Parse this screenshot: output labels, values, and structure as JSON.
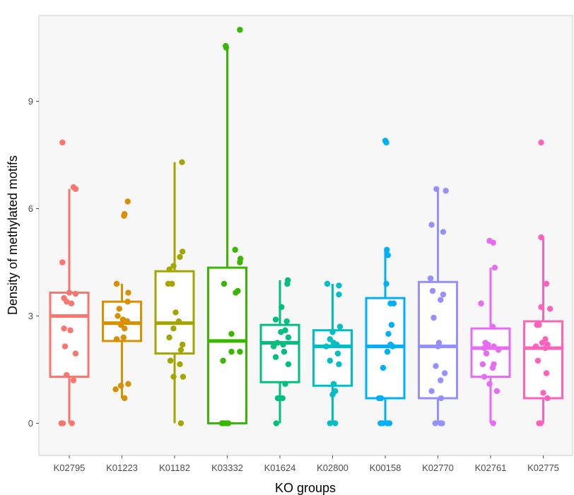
{
  "chart_data": {
    "type": "boxplot",
    "xlabel": "KO groups",
    "ylabel": "Density of methylated motifs",
    "ylim": [
      -0.9,
      11.4
    ],
    "yticks": [
      0,
      3,
      6,
      9
    ],
    "grid": false,
    "legend": "none",
    "background_color": "#f7f7f7",
    "categories": [
      "K02795",
      "K01223",
      "K01182",
      "K03332",
      "K01624",
      "K02800",
      "K00158",
      "K02770",
      "K02761",
      "K02775"
    ],
    "colors": [
      "#f8766d",
      "#d89000",
      "#a3a500",
      "#39b600",
      "#00bf7d",
      "#00bfc4",
      "#00b0f6",
      "#9590ff",
      "#e76bf3",
      "#ff62bc"
    ],
    "boxes": [
      {
        "whisker_low": 0,
        "q1": 1.3,
        "median": 3.0,
        "q3": 3.65,
        "whisker_high": 6.55
      },
      {
        "whisker_low": 0.7,
        "q1": 2.3,
        "median": 2.8,
        "q3": 3.4,
        "whisker_high": 3.9
      },
      {
        "whisker_low": 0,
        "q1": 1.95,
        "median": 2.8,
        "q3": 4.25,
        "whisker_high": 7.3
      },
      {
        "whisker_low": 0,
        "q1": 0,
        "median": 2.3,
        "q3": 4.35,
        "whisker_high": 10.5
      },
      {
        "whisker_low": 0,
        "q1": 1.15,
        "median": 2.25,
        "q3": 2.75,
        "whisker_high": 4.0
      },
      {
        "whisker_low": 0,
        "q1": 1.05,
        "median": 2.15,
        "q3": 2.6,
        "whisker_high": 3.9
      },
      {
        "whisker_low": 0,
        "q1": 0.7,
        "median": 2.15,
        "q3": 3.5,
        "whisker_high": 4.85
      },
      {
        "whisker_low": 0,
        "q1": 0.7,
        "median": 2.15,
        "q3": 3.95,
        "whisker_high": 6.55
      },
      {
        "whisker_low": 0,
        "q1": 1.3,
        "median": 2.1,
        "q3": 2.65,
        "whisker_high": 4.35
      },
      {
        "whisker_low": 0,
        "q1": 0.7,
        "median": 2.1,
        "q3": 2.85,
        "whisker_high": 5.2
      }
    ],
    "points": [
      [
        [
          -0.13,
          7.85
        ],
        [
          0.12,
          6.55
        ],
        [
          0.08,
          6.6
        ],
        [
          -0.13,
          4.5
        ],
        [
          0.0,
          3.65
        ],
        [
          0.12,
          3.62
        ],
        [
          -0.1,
          3.5
        ],
        [
          -0.05,
          3.4
        ],
        [
          0.04,
          3.35
        ],
        [
          -0.1,
          2.65
        ],
        [
          0.02,
          2.6
        ],
        [
          -0.08,
          2.15
        ],
        [
          0.12,
          1.95
        ],
        [
          -0.05,
          1.35
        ],
        [
          0.08,
          1.2
        ],
        [
          -0.15,
          0.0
        ],
        [
          -0.12,
          0.0
        ],
        [
          0.05,
          0.0
        ]
      ],
      [
        [
          0.11,
          6.2
        ],
        [
          0.05,
          5.85
        ],
        [
          0.04,
          5.8
        ],
        [
          -0.1,
          3.9
        ],
        [
          0.12,
          3.65
        ],
        [
          0.11,
          3.4
        ],
        [
          -0.05,
          3.2
        ],
        [
          -0.08,
          3.0
        ],
        [
          0.02,
          2.9
        ],
        [
          0.1,
          2.85
        ],
        [
          -0.02,
          2.75
        ],
        [
          0.05,
          2.65
        ],
        [
          0.03,
          2.4
        ],
        [
          -0.1,
          2.35
        ],
        [
          0.12,
          1.1
        ],
        [
          -0.02,
          1.05
        ],
        [
          -0.12,
          0.95
        ],
        [
          0.05,
          0.7
        ]
      ],
      [
        [
          0.14,
          7.3
        ],
        [
          0.15,
          4.8
        ],
        [
          0.1,
          4.65
        ],
        [
          -0.02,
          4.4
        ],
        [
          -0.1,
          4.3
        ],
        [
          -0.05,
          3.9
        ],
        [
          -0.12,
          3.9
        ],
        [
          0.02,
          3.1
        ],
        [
          0.08,
          2.85
        ],
        [
          -0.02,
          2.65
        ],
        [
          -0.1,
          2.4
        ],
        [
          0.15,
          2.2
        ],
        [
          0.12,
          2.05
        ],
        [
          -0.08,
          1.75
        ],
        [
          0.1,
          1.65
        ],
        [
          -0.02,
          1.3
        ],
        [
          0.16,
          1.3
        ],
        [
          0.12,
          0.0
        ]
      ],
      [
        [
          0.24,
          11.0
        ],
        [
          -0.03,
          10.55
        ],
        [
          -0.02,
          10.5
        ],
        [
          0.15,
          4.85
        ],
        [
          0.25,
          4.6
        ],
        [
          0.24,
          4.5
        ],
        [
          -0.06,
          3.9
        ],
        [
          0.2,
          3.7
        ],
        [
          0.16,
          3.65
        ],
        [
          0.08,
          2.5
        ],
        [
          0.24,
          2.0
        ],
        [
          0.08,
          2.0
        ],
        [
          -0.08,
          1.75
        ],
        [
          -0.1,
          0.0
        ],
        [
          -0.06,
          0.0
        ],
        [
          -0.02,
          0.0
        ],
        [
          0.02,
          0.0
        ]
      ],
      [
        [
          0.15,
          4.0
        ],
        [
          0.14,
          3.9
        ],
        [
          0.03,
          3.25
        ],
        [
          -0.08,
          2.9
        ],
        [
          0.13,
          2.85
        ],
        [
          0.1,
          2.6
        ],
        [
          0.02,
          2.55
        ],
        [
          0.16,
          2.4
        ],
        [
          -0.05,
          2.25
        ],
        [
          0.06,
          2.2
        ],
        [
          -0.12,
          2.15
        ],
        [
          0.08,
          2.0
        ],
        [
          0.16,
          1.65
        ],
        [
          -0.08,
          1.85
        ],
        [
          0.1,
          1.1
        ],
        [
          0.05,
          0.7
        ],
        [
          -0.04,
          0.7
        ],
        [
          -0.07,
          0.0
        ]
      ],
      [
        [
          -0.1,
          3.9
        ],
        [
          0.12,
          3.85
        ],
        [
          0.12,
          3.6
        ],
        [
          0.14,
          2.7
        ],
        [
          0.0,
          2.55
        ],
        [
          -0.05,
          2.35
        ],
        [
          0.02,
          2.25
        ],
        [
          0.08,
          2.2
        ],
        [
          -0.12,
          2.15
        ],
        [
          0.1,
          1.95
        ],
        [
          -0.05,
          1.75
        ],
        [
          0.12,
          1.65
        ],
        [
          0.02,
          1.1
        ],
        [
          0.05,
          0.9
        ],
        [
          0.0,
          0.8
        ],
        [
          -0.05,
          0.0
        ],
        [
          0.05,
          0.0
        ]
      ],
      [
        [
          0.0,
          7.9
        ],
        [
          0.02,
          7.85
        ],
        [
          0.03,
          4.85
        ],
        [
          0.05,
          4.7
        ],
        [
          0.02,
          3.9
        ],
        [
          0.16,
          3.35
        ],
        [
          0.1,
          3.35
        ],
        [
          0.12,
          2.75
        ],
        [
          0.06,
          2.5
        ],
        [
          0.1,
          2.2
        ],
        [
          0.14,
          2.15
        ],
        [
          0.04,
          2.0
        ],
        [
          -0.04,
          1.55
        ],
        [
          -0.12,
          0.7
        ],
        [
          -0.08,
          0.7
        ],
        [
          -0.05,
          0.0
        ],
        [
          0.04,
          0.0
        ],
        [
          0.08,
          0.0
        ],
        [
          -0.09,
          0.0
        ]
      ],
      [
        [
          -0.03,
          6.55
        ],
        [
          0.15,
          6.5
        ],
        [
          -0.12,
          5.55
        ],
        [
          0.1,
          5.35
        ],
        [
          -0.14,
          4.05
        ],
        [
          -0.1,
          3.7
        ],
        [
          0.1,
          3.6
        ],
        [
          0.05,
          3.45
        ],
        [
          -0.08,
          2.95
        ],
        [
          0.02,
          2.25
        ],
        [
          0.0,
          2.15
        ],
        [
          -0.04,
          1.6
        ],
        [
          0.13,
          1.4
        ],
        [
          0.05,
          1.2
        ],
        [
          -0.12,
          0.9
        ],
        [
          0.06,
          0.7
        ],
        [
          -0.05,
          0.0
        ],
        [
          0.05,
          0.0
        ],
        [
          0.08,
          0.0
        ]
      ],
      [
        [
          -0.02,
          5.1
        ],
        [
          0.05,
          5.05
        ],
        [
          0.08,
          4.35
        ],
        [
          -0.18,
          3.35
        ],
        [
          0.04,
          2.7
        ],
        [
          -0.1,
          2.25
        ],
        [
          -0.05,
          2.2
        ],
        [
          0.06,
          2.15
        ],
        [
          -0.12,
          2.1
        ],
        [
          0.15,
          2.05
        ],
        [
          -0.08,
          1.95
        ],
        [
          0.06,
          1.65
        ],
        [
          -0.15,
          1.65
        ],
        [
          0.04,
          1.55
        ],
        [
          -0.12,
          1.3
        ],
        [
          -0.02,
          1.1
        ],
        [
          0.12,
          0.9
        ],
        [
          0.05,
          0.0
        ]
      ],
      [
        [
          -0.04,
          7.85
        ],
        [
          -0.04,
          5.2
        ],
        [
          0.06,
          3.9
        ],
        [
          -0.04,
          3.25
        ],
        [
          0.13,
          3.2
        ],
        [
          -0.12,
          2.75
        ],
        [
          -0.08,
          2.75
        ],
        [
          0.04,
          2.35
        ],
        [
          -0.02,
          2.25
        ],
        [
          0.08,
          2.2
        ],
        [
          -0.14,
          2.15
        ],
        [
          0.04,
          2.1
        ],
        [
          -0.1,
          1.75
        ],
        [
          0.06,
          1.4
        ],
        [
          0.0,
          0.85
        ],
        [
          0.08,
          0.7
        ],
        [
          -0.05,
          0.0
        ],
        [
          -0.08,
          0.0
        ]
      ]
    ]
  }
}
